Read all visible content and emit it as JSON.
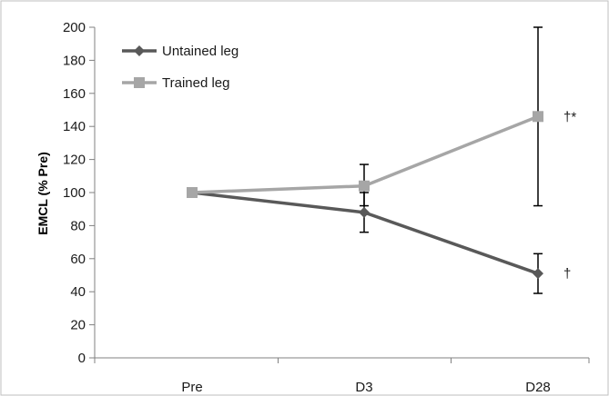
{
  "chart_data": {
    "type": "line",
    "title": "",
    "xlabel": "",
    "ylabel": "EMCL (% Pre)",
    "ylim": [
      0,
      200
    ],
    "yticks": [
      0,
      20,
      40,
      60,
      80,
      100,
      120,
      140,
      160,
      180,
      200
    ],
    "categories": [
      "Pre",
      "D3",
      "D28"
    ],
    "grid": false,
    "legend_position": "top-left",
    "series": [
      {
        "name": "Untained leg",
        "color": "#595959",
        "marker": "diamond",
        "values": [
          100,
          88,
          51
        ],
        "error_low": [
          null,
          76,
          39
        ],
        "error_high": [
          null,
          100,
          63
        ],
        "annotations": [
          null,
          null,
          "†"
        ]
      },
      {
        "name": "Trained leg",
        "color": "#a6a6a6",
        "marker": "square",
        "values": [
          100,
          104,
          146
        ],
        "error_low": [
          null,
          92,
          92
        ],
        "error_high": [
          null,
          117,
          200
        ],
        "annotations": [
          null,
          null,
          "†*"
        ]
      }
    ]
  }
}
